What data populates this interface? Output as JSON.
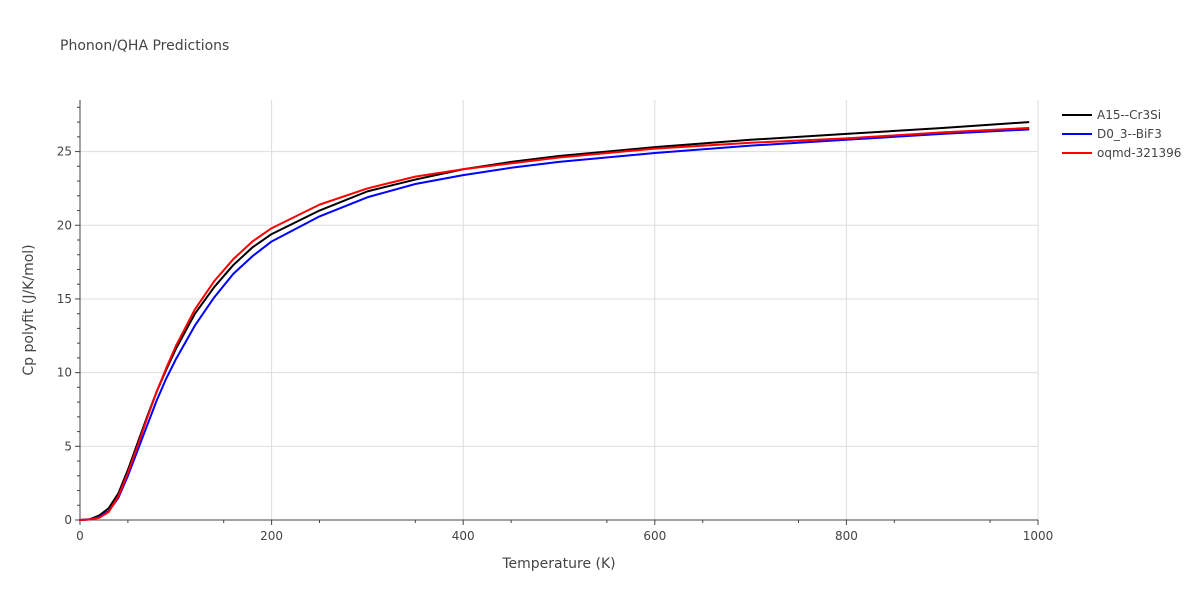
{
  "chart_data": {
    "type": "line",
    "title": "Phonon/QHA Predictions",
    "xlabel": "Temperature (K)",
    "ylabel": "Cp polyfit (J/K/mol)",
    "xlim": [
      0,
      1000
    ],
    "ylim": [
      0,
      28.5
    ],
    "x_ticks": [
      0,
      200,
      400,
      600,
      800,
      1000
    ],
    "y_ticks": [
      0,
      5,
      10,
      15,
      20,
      25
    ],
    "grid": true,
    "legend_position": "top-right",
    "series": [
      {
        "name": "A15--Cr3Si",
        "color": "#000000",
        "x": [
          0,
          10,
          20,
          30,
          40,
          50,
          60,
          70,
          80,
          90,
          100,
          120,
          140,
          160,
          180,
          200,
          250,
          300,
          350,
          400,
          450,
          500,
          600,
          700,
          800,
          900,
          990
        ],
        "y": [
          0,
          0.05,
          0.3,
          0.8,
          1.8,
          3.4,
          5.2,
          7.0,
          8.7,
          10.2,
          11.6,
          14.0,
          15.8,
          17.3,
          18.5,
          19.4,
          21.0,
          22.3,
          23.1,
          23.8,
          24.3,
          24.7,
          25.3,
          25.8,
          26.2,
          26.6,
          27.0
        ]
      },
      {
        "name": "D0_3--BiF3",
        "color": "#0000ff",
        "x": [
          0,
          10,
          20,
          30,
          40,
          50,
          60,
          70,
          80,
          90,
          100,
          120,
          140,
          160,
          180,
          200,
          250,
          300,
          350,
          400,
          450,
          500,
          600,
          700,
          800,
          900,
          990
        ],
        "y": [
          0,
          0.03,
          0.2,
          0.6,
          1.5,
          3.0,
          4.7,
          6.4,
          8.1,
          9.6,
          10.9,
          13.2,
          15.1,
          16.7,
          17.9,
          18.9,
          20.6,
          21.9,
          22.8,
          23.4,
          23.9,
          24.3,
          24.9,
          25.4,
          25.8,
          26.2,
          26.5
        ]
      },
      {
        "name": "oqmd-321396",
        "color": "#ff0000",
        "x": [
          0,
          10,
          20,
          30,
          40,
          50,
          60,
          70,
          80,
          90,
          100,
          120,
          140,
          160,
          180,
          200,
          250,
          300,
          350,
          400,
          450,
          500,
          600,
          700,
          800,
          900,
          990
        ],
        "y": [
          0,
          0.03,
          0.15,
          0.55,
          1.6,
          3.2,
          5.0,
          6.9,
          8.7,
          10.3,
          11.8,
          14.3,
          16.2,
          17.7,
          18.9,
          19.8,
          21.4,
          22.5,
          23.3,
          23.8,
          24.2,
          24.6,
          25.2,
          25.6,
          25.9,
          26.3,
          26.6
        ]
      }
    ]
  }
}
